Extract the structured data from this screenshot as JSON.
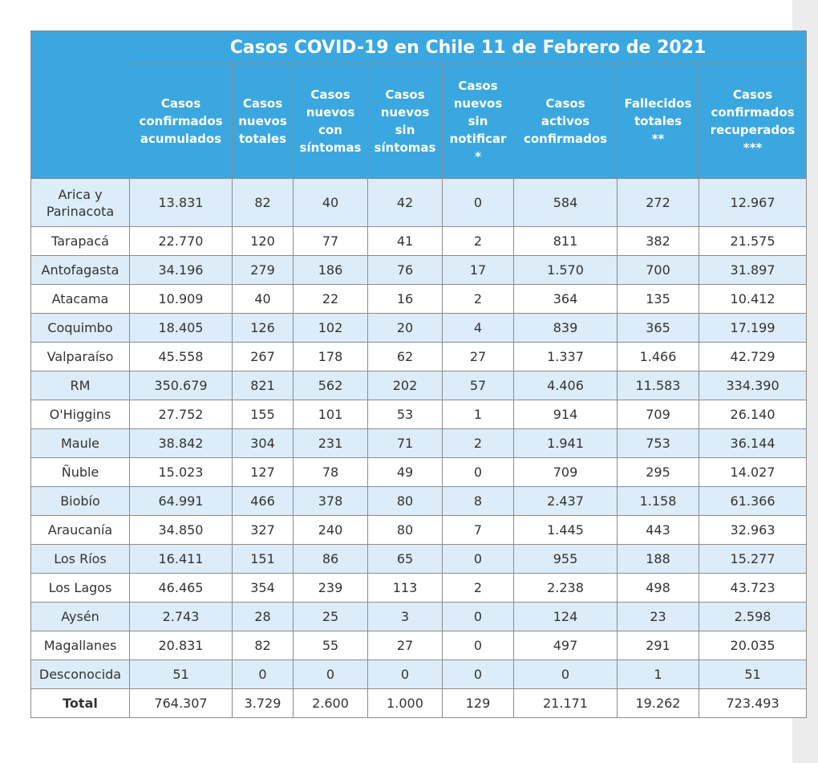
{
  "table": {
    "title": "Casos COVID-19 en Chile 11 de Febrero de 2021",
    "columns": [
      "Casos\nconfirmados\nacumulados",
      "Casos\nnuevos\ntotales",
      "Casos\nnuevos\ncon\nsíntomas",
      "Casos\nnuevos\nsin\nsíntomas",
      "Casos\nnuevos\nsin\nnotificar\n*",
      "Casos\nactivos\nconfirmados",
      "Fallecidos\ntotales\n**",
      "Casos\nconfirmados\nrecuperados\n***"
    ],
    "rows": [
      {
        "region": "Arica y\nParinacota",
        "values": [
          "13.831",
          "82",
          "40",
          "42",
          "0",
          "584",
          "272",
          "12.967"
        ]
      },
      {
        "region": "Tarapacá",
        "values": [
          "22.770",
          "120",
          "77",
          "41",
          "2",
          "811",
          "382",
          "21.575"
        ]
      },
      {
        "region": "Antofagasta",
        "values": [
          "34.196",
          "279",
          "186",
          "76",
          "17",
          "1.570",
          "700",
          "31.897"
        ]
      },
      {
        "region": "Atacama",
        "values": [
          "10.909",
          "40",
          "22",
          "16",
          "2",
          "364",
          "135",
          "10.412"
        ]
      },
      {
        "region": "Coquimbo",
        "values": [
          "18.405",
          "126",
          "102",
          "20",
          "4",
          "839",
          "365",
          "17.199"
        ]
      },
      {
        "region": "Valparaíso",
        "values": [
          "45.558",
          "267",
          "178",
          "62",
          "27",
          "1.337",
          "1.466",
          "42.729"
        ]
      },
      {
        "region": "RM",
        "values": [
          "350.679",
          "821",
          "562",
          "202",
          "57",
          "4.406",
          "11.583",
          "334.390"
        ]
      },
      {
        "region": "O'Higgins",
        "values": [
          "27.752",
          "155",
          "101",
          "53",
          "1",
          "914",
          "709",
          "26.140"
        ]
      },
      {
        "region": "Maule",
        "values": [
          "38.842",
          "304",
          "231",
          "71",
          "2",
          "1.941",
          "753",
          "36.144"
        ]
      },
      {
        "region": "Ñuble",
        "values": [
          "15.023",
          "127",
          "78",
          "49",
          "0",
          "709",
          "295",
          "14.027"
        ]
      },
      {
        "region": "Biobío",
        "values": [
          "64.991",
          "466",
          "378",
          "80",
          "8",
          "2.437",
          "1.158",
          "61.366"
        ]
      },
      {
        "region": "Araucanía",
        "values": [
          "34.850",
          "327",
          "240",
          "80",
          "7",
          "1.445",
          "443",
          "32.963"
        ]
      },
      {
        "region": "Los Ríos",
        "values": [
          "16.411",
          "151",
          "86",
          "65",
          "0",
          "955",
          "188",
          "15.277"
        ]
      },
      {
        "region": "Los Lagos",
        "values": [
          "46.465",
          "354",
          "239",
          "113",
          "2",
          "2.238",
          "498",
          "43.723"
        ]
      },
      {
        "region": "Aysén",
        "values": [
          "2.743",
          "28",
          "25",
          "3",
          "0",
          "124",
          "23",
          "2.598"
        ]
      },
      {
        "region": "Magallanes",
        "values": [
          "20.831",
          "82",
          "55",
          "27",
          "0",
          "497",
          "291",
          "20.035"
        ]
      },
      {
        "region": "Desconocida",
        "values": [
          "51",
          "0",
          "0",
          "0",
          "0",
          "0",
          "1",
          "51"
        ]
      }
    ],
    "total": {
      "label": "Total",
      "values": [
        "764.307",
        "3.729",
        "2.600",
        "1.000",
        "129",
        "21.171",
        "19.262",
        "723.493"
      ]
    }
  },
  "colors": {
    "header_blue": "#3ba7e0",
    "stripe_blue": "#dcecf8",
    "border": "#8c8c8c"
  }
}
